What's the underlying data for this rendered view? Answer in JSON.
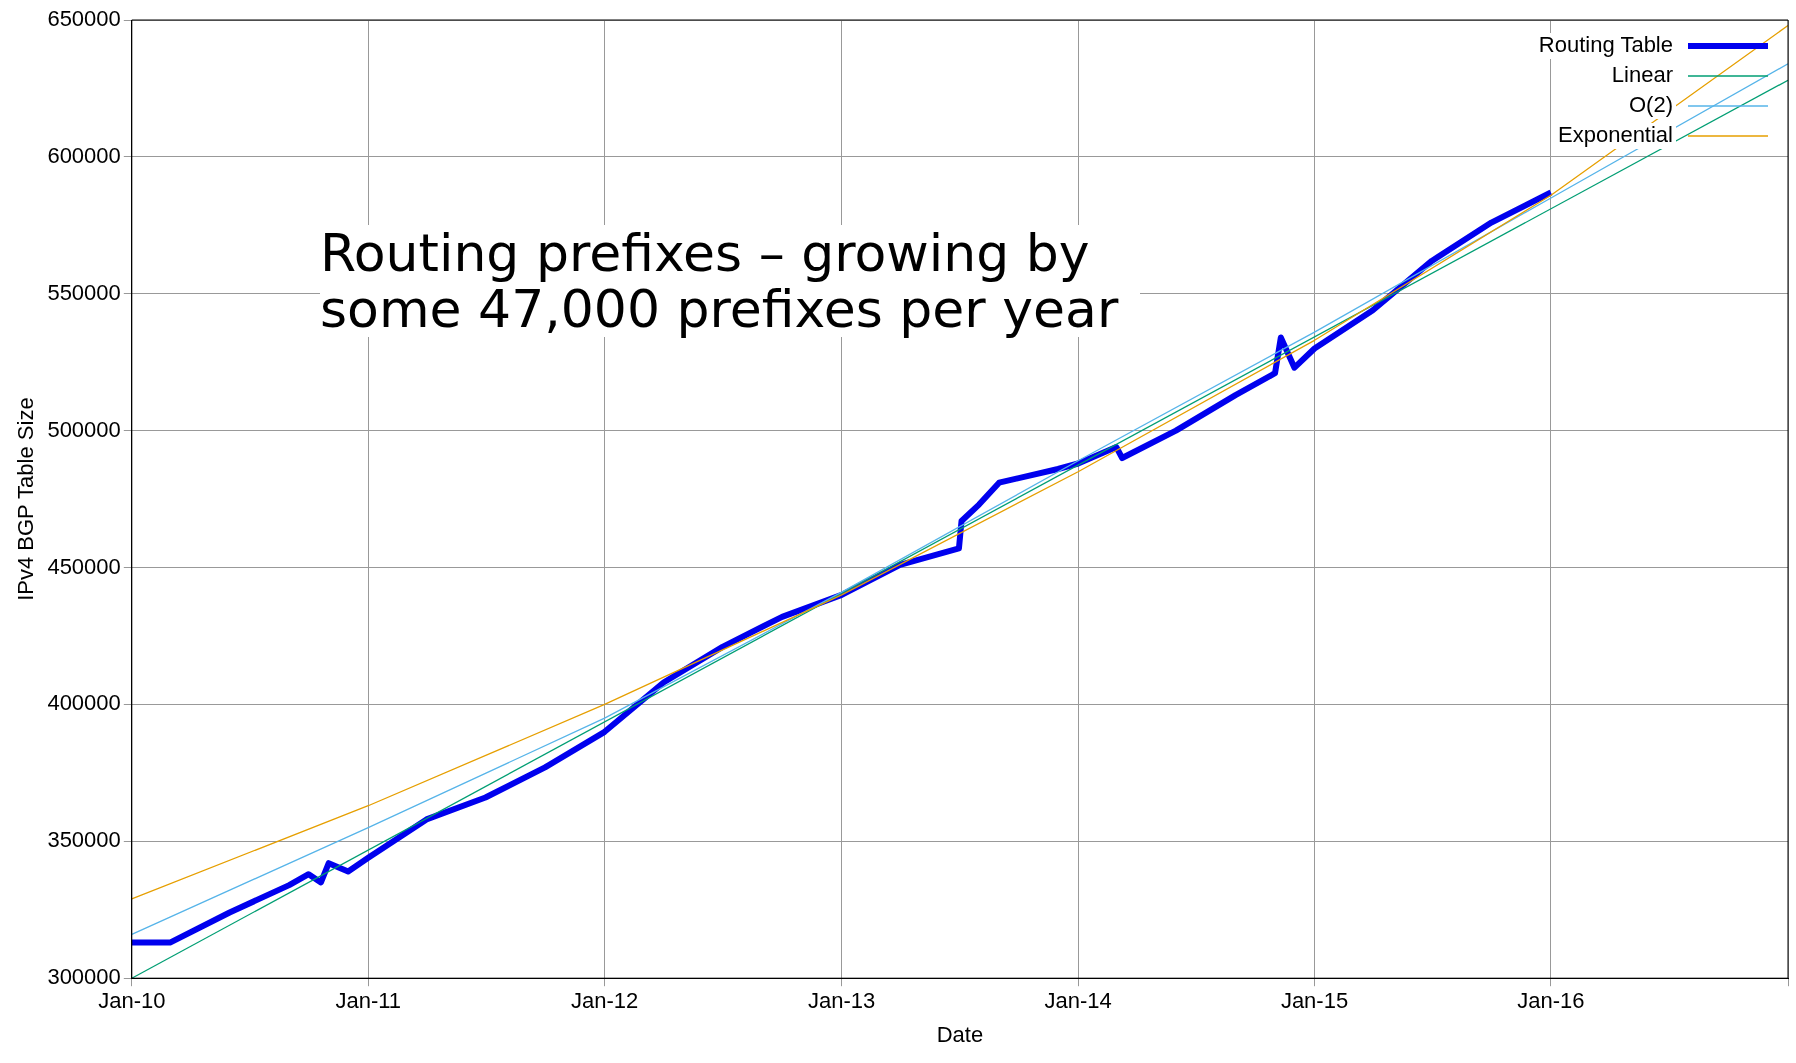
{
  "chart_data": {
    "type": "line",
    "xlabel": "Date",
    "ylabel": "IPv4 BGP Table Size",
    "annotations": [
      "Routing prefixes – growing by some 47,000 prefixes per year"
    ],
    "xlim": [
      "2010-01",
      "2017-01"
    ],
    "xticks": [
      {
        "value": "2010-01",
        "label": "Jan-10"
      },
      {
        "value": "2011-01",
        "label": "Jan-11"
      },
      {
        "value": "2012-01",
        "label": "Jan-12"
      },
      {
        "value": "2013-01",
        "label": "Jan-13"
      },
      {
        "value": "2014-01",
        "label": "Jan-14"
      },
      {
        "value": "2015-01",
        "label": "Jan-15"
      },
      {
        "value": "2016-01",
        "label": "Jan-16"
      },
      {
        "value": "2017-01",
        "label": null
      }
    ],
    "ylim": [
      300000,
      650000
    ],
    "yticks": [
      300000,
      350000,
      400000,
      450000,
      500000,
      550000,
      600000,
      650000
    ],
    "grid": true,
    "legend": "top right",
    "marker": "none",
    "line_style": "solid",
    "series": [
      {
        "name": "Routing Table",
        "color": "#0000ee",
        "x": [
          "2010-01",
          "2010-03",
          "2010-06",
          "2010-09",
          "2010-10",
          "2010-10-20",
          "2010-11",
          "2010-12",
          "2011-01",
          "2011-04",
          "2011-07",
          "2011-10",
          "2012-01",
          "2012-04",
          "2012-07",
          "2012-10",
          "2013-01",
          "2013-04",
          "2013-07",
          "2013-07-05",
          "2013-08",
          "2013-09",
          "2013-12",
          "2014-01",
          "2014-03",
          "2014-03-10",
          "2014-06",
          "2014-09",
          "2014-11",
          "2014-11-10",
          "2014-12",
          "2015-01",
          "2015-04",
          "2015-07",
          "2015-10",
          "2016-01"
        ],
        "values": [
          313000,
          313000,
          324000,
          334000,
          338000,
          335000,
          342000,
          339000,
          344000,
          358000,
          366000,
          377000,
          390000,
          408000,
          421000,
          432000,
          440000,
          451000,
          457000,
          467000,
          473000,
          481000,
          486000,
          488000,
          494000,
          490000,
          500000,
          513000,
          521000,
          534000,
          523000,
          530000,
          544000,
          562000,
          576000,
          587000
        ]
      },
      {
        "name": "Linear",
        "color": "#009e73",
        "x": [
          "2010-01",
          "2017-01"
        ],
        "values": [
          300000,
          628000
        ]
      },
      {
        "name": "O(2)",
        "color": "#56b4e9",
        "x": [
          "2010-01",
          "2011-01",
          "2012-01",
          "2013-01",
          "2014-01",
          "2015-01",
          "2016-01",
          "2017-01"
        ],
        "values": [
          316000,
          355000,
          395000,
          441000,
          489000,
          536000,
          585000,
          634000
        ]
      },
      {
        "name": "Exponential",
        "color": "#e69f00",
        "x": [
          "2010-01",
          "2011-01",
          "2012-01",
          "2013-01",
          "2014-01",
          "2015-01",
          "2016-01",
          "2017-01"
        ],
        "values": [
          329000,
          363000,
          400000,
          440000,
          485000,
          533000,
          586000,
          648000
        ]
      }
    ]
  }
}
